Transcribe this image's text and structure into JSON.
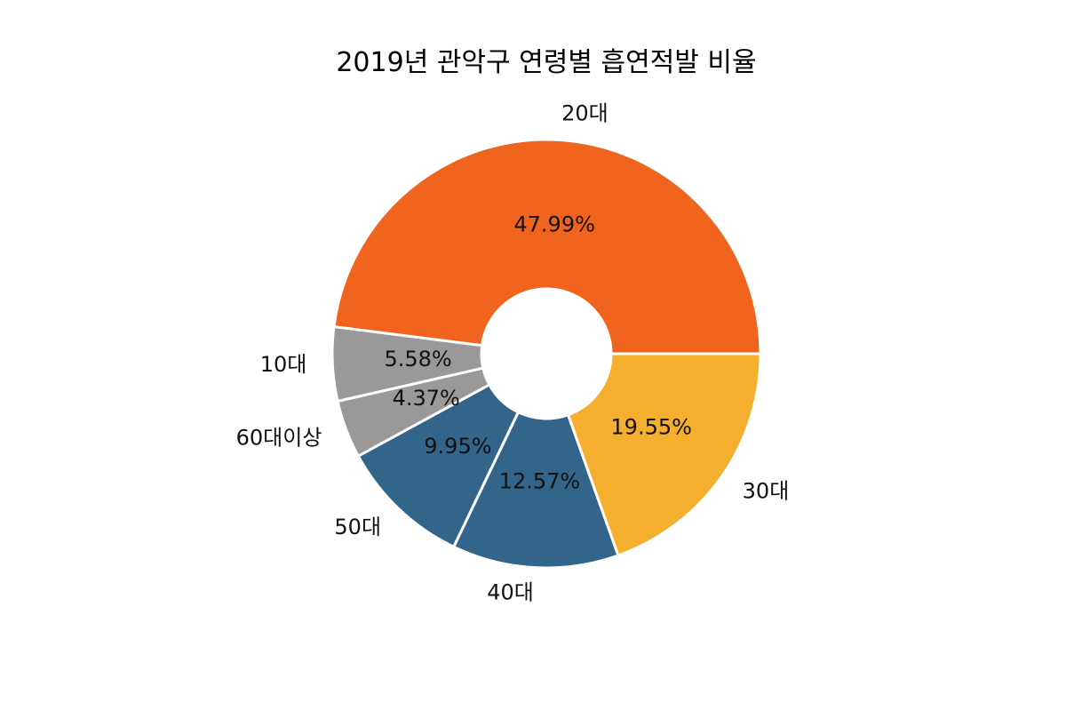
{
  "chart_data": {
    "type": "pie",
    "title": "2019년 관악구 연령별 흡연적발 비율",
    "donut": true,
    "start_angle_deg": 0,
    "direction": "counterclockwise",
    "slices": [
      {
        "label": "20대",
        "value": 47.99,
        "pct_label": "47.99%",
        "color": "#F1641E"
      },
      {
        "label": "10대",
        "value": 5.58,
        "pct_label": "5.58%",
        "color": "#999999"
      },
      {
        "label": "60대이상",
        "value": 4.37,
        "pct_label": "4.37%",
        "color": "#999999"
      },
      {
        "label": "50대",
        "value": 9.95,
        "pct_label": "9.95%",
        "color": "#33658A"
      },
      {
        "label": "40대",
        "value": 12.57,
        "pct_label": "12.57%",
        "color": "#33658A"
      },
      {
        "label": "30대",
        "value": 19.55,
        "pct_label": "19.55%",
        "color": "#F5AF2F"
      }
    ],
    "edge_color": "#FFFFFF",
    "background": "#FFFFFF"
  }
}
